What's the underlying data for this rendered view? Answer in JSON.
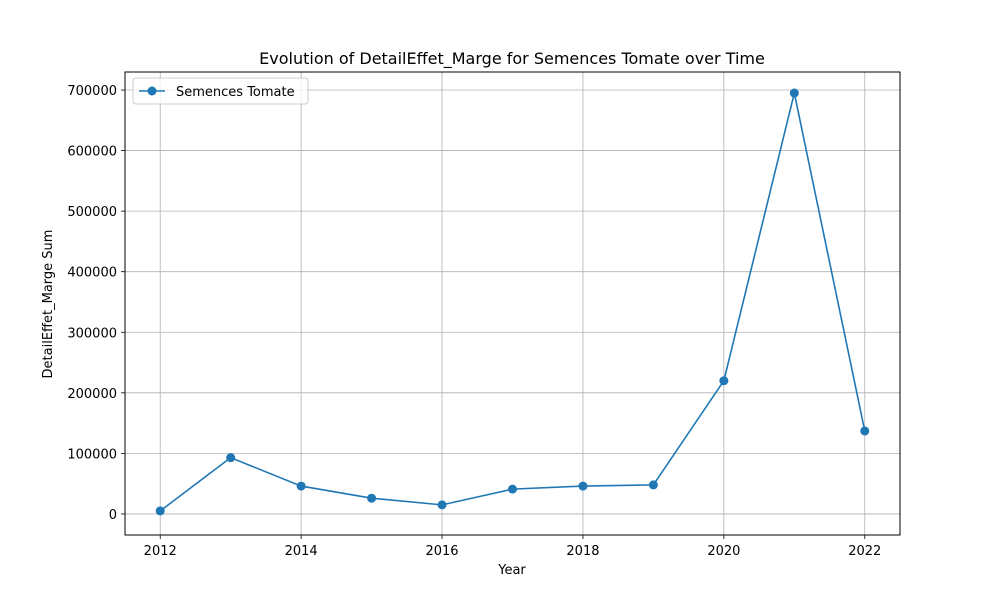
{
  "chart_data": {
    "type": "line",
    "title": "Evolution of DetailEffet_Marge for Semences Tomate over Time",
    "xlabel": "Year",
    "ylabel": "DetailEffet_Marge Sum",
    "x": [
      2012,
      2013,
      2014,
      2015,
      2016,
      2017,
      2018,
      2019,
      2020,
      2021,
      2022
    ],
    "series": [
      {
        "name": "Semences Tomate",
        "values": [
          5000,
          93000,
          46000,
          26000,
          15000,
          41000,
          46000,
          48000,
          220000,
          695000,
          137000
        ],
        "color": "#1f77b4"
      }
    ],
    "xlim": [
      2011.5,
      2022.5
    ],
    "ylim": [
      -34750,
      729750
    ],
    "xticks": [
      2012,
      2014,
      2016,
      2018,
      2020,
      2022
    ],
    "yticks": [
      0,
      100000,
      200000,
      300000,
      400000,
      500000,
      600000,
      700000
    ],
    "grid": true,
    "legend_position": "upper-left"
  }
}
